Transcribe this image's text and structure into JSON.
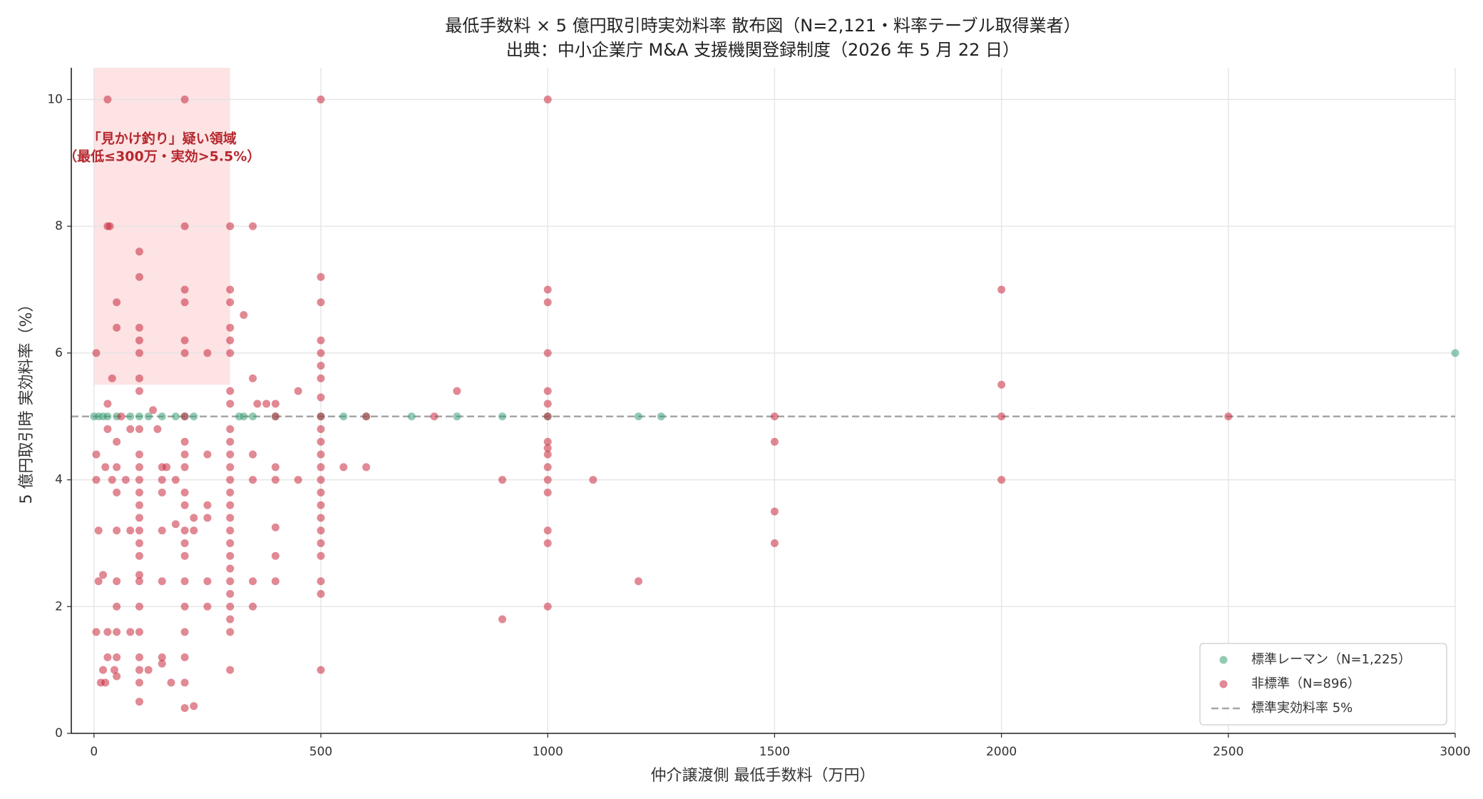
{
  "chart_data": {
    "type": "scatter",
    "title": "最低手数料 × 5 億円取引時実効料率 散布図（N=2,121・料率テーブル取得業者）",
    "subtitle": "出典：中小企業庁 M&A 支援機関登録制度（2026 年 5 月 22 日）",
    "x_label": "仲介譲渡側 最低手数料（万円）",
    "y_label": "5 億円取引時 実効料率（%）",
    "xlim": [
      -50,
      3000
    ],
    "ylim": [
      0,
      10.5
    ],
    "xticks": [
      0,
      500,
      1000,
      1500,
      2000,
      2500,
      3000
    ],
    "yticks": [
      0,
      2,
      4,
      6,
      8,
      10
    ],
    "grid": true,
    "legend_loc": "lower right",
    "reference_line": {
      "value": 5,
      "label": "標準実効料率 5%",
      "color": "#a6a6a6"
    },
    "highlight": {
      "xlim": [
        0,
        300
      ],
      "ylim": [
        5.5,
        10.5
      ],
      "color": "#fde3e4",
      "label": [
        "「見かけ釣り」疑い領域",
        "（最低≤300万・実効>5.5%）"
      ],
      "label_color": "#b5282e"
    },
    "series": [
      {
        "name": "標準レーマン（N=1,225）",
        "color": "#3a9e74",
        "x": [
          0,
          10,
          20,
          30,
          50,
          80,
          100,
          120,
          150,
          180,
          200,
          220,
          320,
          330,
          350,
          400,
          500,
          550,
          600,
          700,
          800,
          900,
          1000,
          1200,
          1250,
          3000
        ],
        "values": [
          5,
          5,
          5,
          5,
          5,
          5,
          5,
          5,
          5,
          5,
          5,
          5,
          5,
          5,
          5,
          5,
          5,
          5,
          5,
          5,
          5,
          5,
          5,
          5,
          5,
          6
        ]
      },
      {
        "name": "非標準（N=896）",
        "color": "#c8283c",
        "x": [
          5,
          5,
          5,
          10,
          5,
          10,
          20,
          15,
          20,
          25,
          25,
          30,
          30,
          30,
          30,
          30,
          30,
          35,
          40,
          40,
          45,
          50,
          50,
          50,
          50,
          50,
          50,
          50,
          50,
          50,
          50,
          50,
          60,
          70,
          80,
          80,
          80,
          100,
          100,
          100,
          100,
          100,
          100,
          100,
          100,
          100,
          100,
          100,
          100,
          100,
          100,
          100,
          100,
          100,
          100,
          100,
          100,
          100,
          100,
          100,
          100,
          100,
          120,
          130,
          140,
          150,
          150,
          150,
          150,
          150,
          150,
          150,
          160,
          170,
          180,
          180,
          200,
          200,
          200,
          200,
          200,
          200,
          200,
          200,
          200,
          200,
          200,
          200,
          200,
          200,
          200,
          200,
          200,
          200,
          200,
          200,
          200,
          220,
          220,
          220,
          250,
          250,
          250,
          250,
          250,
          250,
          300,
          300,
          300,
          300,
          300,
          300,
          300,
          300,
          300,
          300,
          300,
          300,
          300,
          300,
          300,
          300,
          300,
          300,
          300,
          300,
          300,
          300,
          300,
          300,
          300,
          300,
          330,
          350,
          350,
          350,
          350,
          350,
          350,
          360,
          380,
          400,
          400,
          400,
          400,
          400,
          400,
          400,
          450,
          450,
          500,
          500,
          500,
          500,
          500,
          500,
          500,
          500,
          500,
          500,
          500,
          500,
          500,
          500,
          500,
          500,
          500,
          500,
          500,
          500,
          500,
          500,
          500,
          550,
          600,
          600,
          750,
          800,
          900,
          900,
          1000,
          1000,
          1000,
          1000,
          1000,
          1000,
          1000,
          1000,
          1000,
          1000,
          1000,
          1000,
          1000,
          1000,
          1000,
          1000,
          1100,
          1200,
          1500,
          1500,
          1500,
          1500,
          2000,
          2000,
          2000,
          2000,
          2500
        ],
        "values": [
          6,
          4.4,
          4,
          2.4,
          1.6,
          3.2,
          2.5,
          0.8,
          1,
          4.2,
          0.8,
          10,
          8,
          5.2,
          4.8,
          1.6,
          1.2,
          8,
          5.6,
          4,
          1,
          6.8,
          6.4,
          4.6,
          4.2,
          3.8,
          3.2,
          2.4,
          2,
          1.6,
          1.2,
          0.9,
          5,
          4,
          4.8,
          3.2,
          1.6,
          7.6,
          7.2,
          6.4,
          6.2,
          6,
          5.6,
          5.4,
          4.8,
          4.4,
          4.2,
          4,
          3.8,
          3.6,
          3.4,
          3.2,
          3,
          2.8,
          2.5,
          2.4,
          2,
          1.6,
          1.2,
          1,
          0.8,
          0.5,
          1,
          5.1,
          4.8,
          4.2,
          4,
          3.8,
          3.2,
          2.4,
          1.2,
          1.1,
          4.2,
          0.8,
          3.3,
          4,
          10,
          8,
          7,
          6.8,
          6.2,
          6,
          5,
          4.6,
          4.4,
          4.2,
          3.8,
          3.6,
          3.2,
          3,
          2.8,
          2.4,
          2,
          1.6,
          1.2,
          0.8,
          0.4,
          3.4,
          3.2,
          0.43,
          6,
          4.4,
          3.6,
          3.4,
          2.4,
          2,
          8,
          7,
          6.8,
          6.4,
          6.2,
          6,
          5.4,
          5.2,
          4.8,
          4.6,
          4.4,
          4.2,
          4,
          3.8,
          3.6,
          3.4,
          3.2,
          3,
          2.8,
          2.6,
          2.4,
          2.2,
          2,
          1.8,
          1.6,
          1,
          6.6,
          8,
          5.6,
          4.4,
          4,
          2.4,
          2,
          5.2,
          5.2,
          5.2,
          5,
          4.2,
          4,
          3.25,
          2.8,
          2.4,
          5.4,
          4,
          10,
          7.2,
          6.8,
          6.2,
          6,
          5.8,
          5.6,
          5.3,
          5,
          4.8,
          4.6,
          4.4,
          4.2,
          4,
          3.8,
          3.6,
          3.4,
          3.2,
          3,
          2.8,
          2.4,
          2.2,
          1,
          4.2,
          5,
          4.2,
          5,
          5.4,
          4,
          1.8,
          10,
          7,
          6.8,
          6,
          5.4,
          5.2,
          5,
          4.6,
          4.5,
          4.4,
          4.2,
          4,
          3.8,
          3.2,
          3,
          2,
          4,
          2.4,
          5,
          4.6,
          3.5,
          3,
          7,
          5.5,
          5,
          4,
          5
        ]
      }
    ]
  }
}
